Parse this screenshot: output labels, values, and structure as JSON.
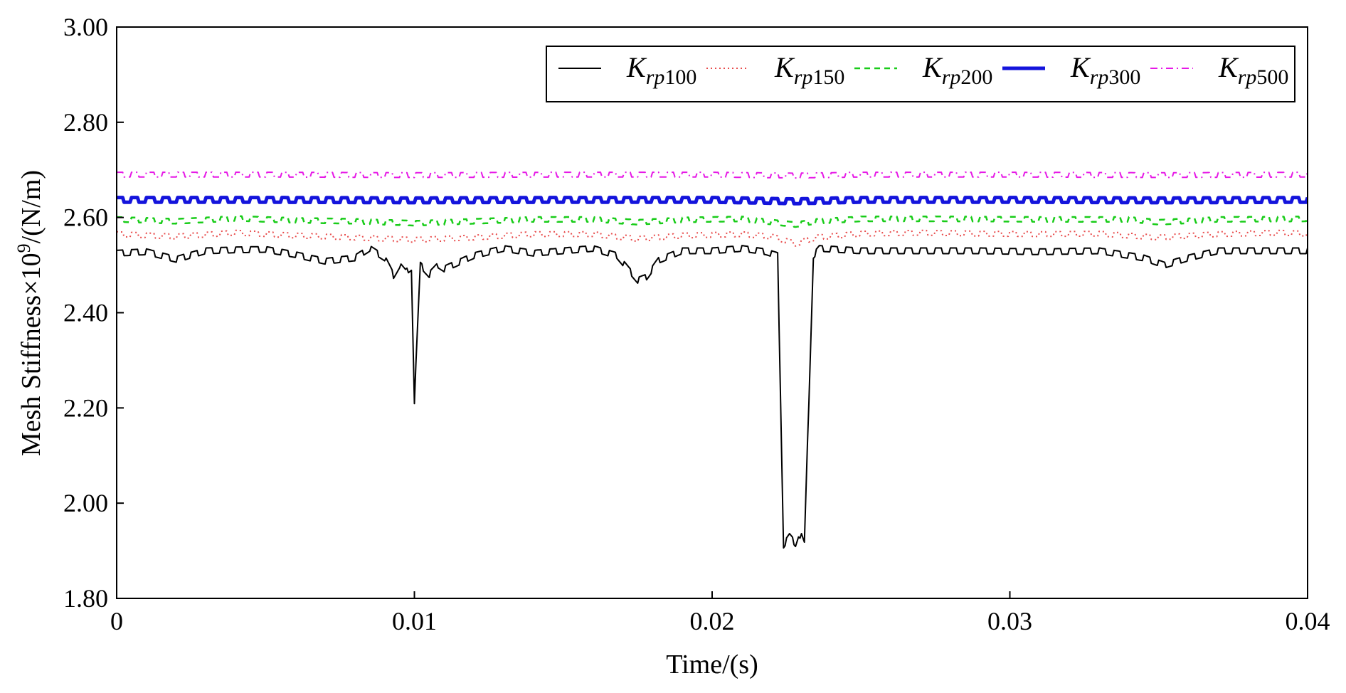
{
  "chart_data": {
    "type": "line",
    "xlabel": "Time/(s)",
    "ylabel_parts": {
      "prefix": "Mesh Stiffness×10",
      "sup": "9",
      "suffix": "/(N/m)"
    },
    "xlim": [
      0,
      0.04
    ],
    "ylim": [
      1.8,
      3.0
    ],
    "xticks": [
      0,
      0.01,
      0.02,
      0.03,
      0.04
    ],
    "xtick_labels": [
      "0",
      "0.01",
      "0.02",
      "0.03",
      "0.04"
    ],
    "yticks": [
      1.8,
      2.0,
      2.2,
      2.4,
      2.6,
      2.8,
      3.0
    ],
    "ytick_labels": [
      "1.80",
      "2.00",
      "2.20",
      "2.40",
      "2.60",
      "2.80",
      "3.00"
    ],
    "legend_position": "top-right",
    "series": [
      {
        "name": "Krp100",
        "base": "K",
        "sub": "rp",
        "num": "100",
        "color": "#000000",
        "style": "solid",
        "points": [
          [
            0,
            2.525
          ],
          [
            0.001,
            2.528
          ],
          [
            0.002,
            2.512
          ],
          [
            0.003,
            2.53
          ],
          [
            0.004,
            2.532
          ],
          [
            0.005,
            2.533
          ],
          [
            0.006,
            2.522
          ],
          [
            0.007,
            2.508
          ],
          [
            0.008,
            2.515
          ],
          [
            0.0085,
            2.535
          ],
          [
            0.009,
            2.515
          ],
          [
            0.0093,
            2.478
          ],
          [
            0.0095,
            2.5
          ],
          [
            0.0097,
            2.485
          ],
          [
            0.0099,
            2.495
          ],
          [
            0.01,
            2.215
          ],
          [
            0.0102,
            2.5
          ],
          [
            0.0105,
            2.48
          ],
          [
            0.0108,
            2.5
          ],
          [
            0.011,
            2.492
          ],
          [
            0.012,
            2.52
          ],
          [
            0.013,
            2.535
          ],
          [
            0.014,
            2.525
          ],
          [
            0.015,
            2.53
          ],
          [
            0.016,
            2.535
          ],
          [
            0.0168,
            2.52
          ],
          [
            0.0172,
            2.49
          ],
          [
            0.0175,
            2.468
          ],
          [
            0.0178,
            2.475
          ],
          [
            0.0182,
            2.51
          ],
          [
            0.019,
            2.53
          ],
          [
            0.02,
            2.53
          ],
          [
            0.021,
            2.535
          ],
          [
            0.0218,
            2.528
          ],
          [
            0.0222,
            2.52
          ],
          [
            0.0224,
            1.912
          ],
          [
            0.0226,
            1.93
          ],
          [
            0.0228,
            1.915
          ],
          [
            0.0229,
            1.935
          ],
          [
            0.023,
            1.93
          ],
          [
            0.0231,
            1.912
          ],
          [
            0.0234,
            2.52
          ],
          [
            0.0236,
            2.535
          ],
          [
            0.025,
            2.53
          ],
          [
            0.027,
            2.53
          ],
          [
            0.029,
            2.53
          ],
          [
            0.031,
            2.528
          ],
          [
            0.033,
            2.53
          ],
          [
            0.0345,
            2.515
          ],
          [
            0.0352,
            2.5
          ],
          [
            0.036,
            2.515
          ],
          [
            0.037,
            2.53
          ],
          [
            0.0385,
            2.53
          ],
          [
            0.04,
            2.53
          ]
        ]
      },
      {
        "name": "Krp150",
        "base": "K",
        "sub": "rp",
        "num": "150",
        "color": "#e84c4c",
        "style": "dotted",
        "points": [
          [
            0,
            2.565
          ],
          [
            0.002,
            2.56
          ],
          [
            0.004,
            2.568
          ],
          [
            0.006,
            2.562
          ],
          [
            0.008,
            2.558
          ],
          [
            0.01,
            2.553
          ],
          [
            0.012,
            2.558
          ],
          [
            0.014,
            2.565
          ],
          [
            0.016,
            2.565
          ],
          [
            0.0175,
            2.555
          ],
          [
            0.019,
            2.562
          ],
          [
            0.021,
            2.565
          ],
          [
            0.022,
            2.56
          ],
          [
            0.0228,
            2.545
          ],
          [
            0.0235,
            2.558
          ],
          [
            0.025,
            2.566
          ],
          [
            0.027,
            2.568
          ],
          [
            0.029,
            2.566
          ],
          [
            0.031,
            2.565
          ],
          [
            0.033,
            2.566
          ],
          [
            0.035,
            2.558
          ],
          [
            0.037,
            2.565
          ],
          [
            0.039,
            2.568
          ],
          [
            0.04,
            2.566
          ]
        ]
      },
      {
        "name": "Krp200",
        "base": "K",
        "sub": "rp",
        "num": "200",
        "color": "#19cc19",
        "style": "dashed",
        "points": [
          [
            0,
            2.596
          ],
          [
            0.002,
            2.592
          ],
          [
            0.004,
            2.598
          ],
          [
            0.006,
            2.594
          ],
          [
            0.008,
            2.592
          ],
          [
            0.01,
            2.588
          ],
          [
            0.012,
            2.592
          ],
          [
            0.014,
            2.596
          ],
          [
            0.016,
            2.596
          ],
          [
            0.0175,
            2.59
          ],
          [
            0.019,
            2.595
          ],
          [
            0.021,
            2.597
          ],
          [
            0.0228,
            2.585
          ],
          [
            0.0235,
            2.592
          ],
          [
            0.025,
            2.597
          ],
          [
            0.028,
            2.597
          ],
          [
            0.031,
            2.596
          ],
          [
            0.034,
            2.596
          ],
          [
            0.035,
            2.59
          ],
          [
            0.037,
            2.596
          ],
          [
            0.04,
            2.597
          ]
        ]
      },
      {
        "name": "Krp300",
        "base": "K",
        "sub": "rp",
        "num": "300",
        "color": "#1414dc",
        "style": "thick",
        "points": [
          [
            0,
            2.637
          ],
          [
            0.005,
            2.637
          ],
          [
            0.01,
            2.636
          ],
          [
            0.015,
            2.637
          ],
          [
            0.02,
            2.637
          ],
          [
            0.0228,
            2.634
          ],
          [
            0.025,
            2.637
          ],
          [
            0.03,
            2.637
          ],
          [
            0.035,
            2.636
          ],
          [
            0.04,
            2.637
          ]
        ]
      },
      {
        "name": "Krp500",
        "base": "K",
        "sub": "rp",
        "num": "500",
        "color": "#e619e6",
        "style": "dashdot",
        "points": [
          [
            0,
            2.69
          ],
          [
            0.005,
            2.69
          ],
          [
            0.01,
            2.689
          ],
          [
            0.015,
            2.69
          ],
          [
            0.02,
            2.69
          ],
          [
            0.0228,
            2.688
          ],
          [
            0.025,
            2.69
          ],
          [
            0.03,
            2.69
          ],
          [
            0.035,
            2.689
          ],
          [
            0.04,
            2.69
          ]
        ]
      }
    ]
  }
}
